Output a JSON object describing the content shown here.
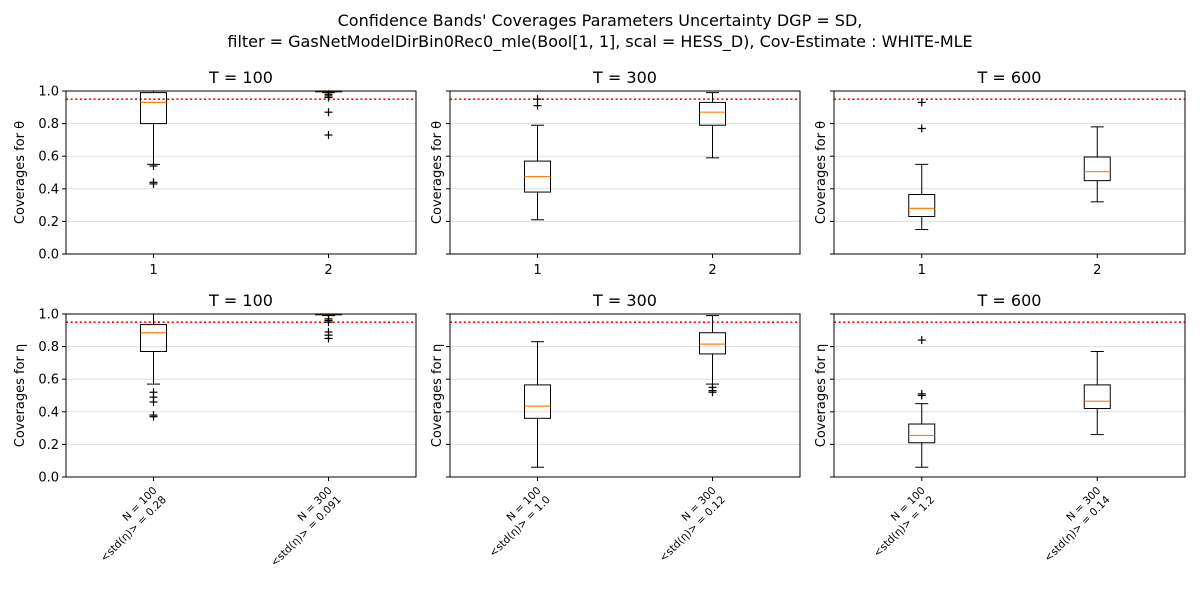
{
  "figure": {
    "title_line1": "Confidence Bands' Coverages Parameters Uncertainty DGP = SD,",
    "title_line2": "filter = GasNetModelDirBin0Rec0_mle(Bool[1, 1], scal = HESS_D), Cov-Estimate : WHITE-MLE"
  },
  "chart_data": [
    {
      "type": "box",
      "title": "T = 100",
      "ylabel": "Coverages for θ",
      "ylim": [
        0,
        1
      ],
      "yticks": [
        "0.0",
        "0.2",
        "0.4",
        "0.6",
        "0.8",
        "1.0"
      ],
      "reference_line": {
        "y": 0.95,
        "color": "#ff0000",
        "style": "dotted"
      },
      "categories": [
        "1",
        "2"
      ],
      "boxes": [
        {
          "q1": 0.8,
          "median": 0.93,
          "q3": 0.99,
          "whisker_low": 0.55,
          "whisker_high": 1.0,
          "outliers": [
            0.54,
            0.44,
            0.43
          ]
        },
        {
          "q1": 0.995,
          "median": 1.0,
          "q3": 1.0,
          "whisker_low": 0.99,
          "whisker_high": 1.0,
          "outliers": [
            0.98,
            0.97,
            0.96,
            0.87,
            0.73
          ]
        }
      ]
    },
    {
      "type": "box",
      "title": "T = 300",
      "ylabel": "Coverages for θ",
      "ylim": [
        0,
        1
      ],
      "yticks": [],
      "reference_line": {
        "y": 0.95,
        "color": "#ff0000",
        "style": "dotted"
      },
      "categories": [
        "1",
        "2"
      ],
      "boxes": [
        {
          "q1": 0.38,
          "median": 0.475,
          "q3": 0.57,
          "whisker_low": 0.21,
          "whisker_high": 0.79,
          "outliers": [
            0.95,
            0.91
          ]
        },
        {
          "q1": 0.79,
          "median": 0.87,
          "q3": 0.93,
          "whisker_low": 0.59,
          "whisker_high": 0.99,
          "outliers": []
        }
      ]
    },
    {
      "type": "box",
      "title": "T = 600",
      "ylabel": "Coverages for θ",
      "ylim": [
        0,
        1
      ],
      "yticks": [],
      "reference_line": {
        "y": 0.95,
        "color": "#ff0000",
        "style": "dotted"
      },
      "categories": [
        "1",
        "2"
      ],
      "boxes": [
        {
          "q1": 0.23,
          "median": 0.28,
          "q3": 0.365,
          "whisker_low": 0.15,
          "whisker_high": 0.55,
          "outliers": [
            0.93,
            0.77
          ]
        },
        {
          "q1": 0.45,
          "median": 0.505,
          "q3": 0.595,
          "whisker_low": 0.32,
          "whisker_high": 0.78,
          "outliers": []
        }
      ]
    },
    {
      "type": "box",
      "title": "T = 100",
      "ylabel": "Coverages for η",
      "ylim": [
        0,
        1
      ],
      "yticks": [
        "0.0",
        "0.2",
        "0.4",
        "0.6",
        "0.8",
        "1.0"
      ],
      "reference_line": {
        "y": 0.95,
        "color": "#ff0000",
        "style": "dotted"
      },
      "categories": [
        {
          "line1": "N = 100",
          "line2": "<std(η)> =  0.28"
        },
        {
          "line1": "N = 300",
          "line2": "<std(η)> =  0.091"
        }
      ],
      "boxes": [
        {
          "q1": 0.77,
          "median": 0.885,
          "q3": 0.935,
          "whisker_low": 0.57,
          "whisker_high": 1.0,
          "outliers": [
            0.52,
            0.49,
            0.46,
            0.38,
            0.37
          ]
        },
        {
          "q1": 0.995,
          "median": 1.0,
          "q3": 1.0,
          "whisker_low": 0.99,
          "whisker_high": 1.0,
          "outliers": [
            0.97,
            0.96,
            0.95,
            0.89,
            0.87,
            0.85
          ]
        }
      ]
    },
    {
      "type": "box",
      "title": "T = 300",
      "ylabel": "Coverages for η",
      "ylim": [
        0,
        1
      ],
      "yticks": [],
      "reference_line": {
        "y": 0.95,
        "color": "#ff0000",
        "style": "dotted"
      },
      "categories": [
        {
          "line1": "N = 100",
          "line2": "<std(η)> =  1.0"
        },
        {
          "line1": "N = 300",
          "line2": "<std(η)> =  0.12"
        }
      ],
      "boxes": [
        {
          "q1": 0.36,
          "median": 0.435,
          "q3": 0.565,
          "whisker_low": 0.06,
          "whisker_high": 0.83,
          "outliers": []
        },
        {
          "q1": 0.755,
          "median": 0.815,
          "q3": 0.885,
          "whisker_low": 0.57,
          "whisker_high": 0.99,
          "outliers": [
            0.55,
            0.53,
            0.52
          ]
        }
      ]
    },
    {
      "type": "box",
      "title": "T = 600",
      "ylabel": "Coverages for η",
      "ylim": [
        0,
        1
      ],
      "yticks": [],
      "reference_line": {
        "y": 0.95,
        "color": "#ff0000",
        "style": "dotted"
      },
      "categories": [
        {
          "line1": "N = 100",
          "line2": "<std(η)> =  1.2"
        },
        {
          "line1": "N = 300",
          "line2": "<std(η)> =  0.14"
        }
      ],
      "boxes": [
        {
          "q1": 0.21,
          "median": 0.255,
          "q3": 0.325,
          "whisker_low": 0.06,
          "whisker_high": 0.45,
          "outliers": [
            0.84,
            0.51,
            0.5
          ]
        },
        {
          "q1": 0.42,
          "median": 0.465,
          "q3": 0.565,
          "whisker_low": 0.26,
          "whisker_high": 0.77,
          "outliers": []
        }
      ]
    }
  ],
  "colors": {
    "box": "#000000",
    "median": "#ff7f0e",
    "reference": "#ff0000",
    "grid": "#dddddd"
  }
}
